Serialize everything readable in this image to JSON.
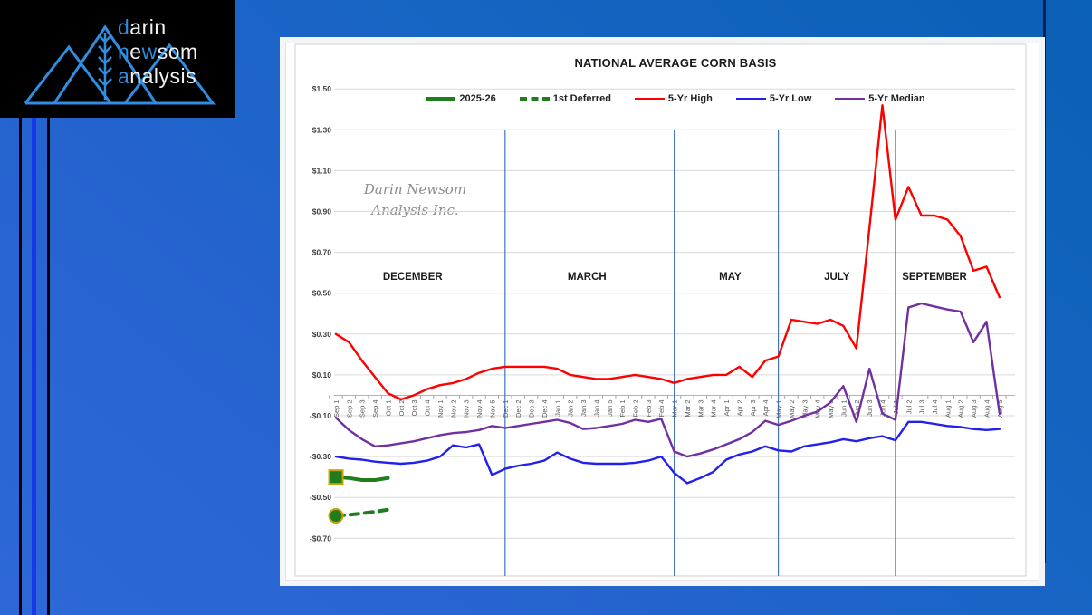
{
  "logo": {
    "d": "d",
    "arin": "arin",
    "n": "n",
    "e": "e",
    "w": "w",
    "som": "som",
    "a": "a",
    "nalysis": "nalysis",
    "accent_color": "#2f8de2"
  },
  "watermark": {
    "line1": "Darin Newsom",
    "line2": "Analysis Inc."
  },
  "chart_data": {
    "type": "line",
    "title": "NATIONAL AVERAGE CORN BASIS",
    "xlabel": "",
    "ylabel": "",
    "ylim": [
      -0.7,
      1.5
    ],
    "grid": true,
    "legend_position": "top",
    "y_ticks": [
      {
        "label": "$1.50",
        "v": 1.5
      },
      {
        "label": "$1.30",
        "v": 1.3
      },
      {
        "label": "$1.10",
        "v": 1.1
      },
      {
        "label": "$0.90",
        "v": 0.9
      },
      {
        "label": "$0.70",
        "v": 0.7
      },
      {
        "label": "$0.50",
        "v": 0.5
      },
      {
        "label": "$0.30",
        "v": 0.3
      },
      {
        "label": "$0.10",
        "v": 0.1
      },
      {
        "label": "-$0.10",
        "v": -0.1
      },
      {
        "label": "-$0.30",
        "v": -0.3
      },
      {
        "label": "-$0.50",
        "v": -0.5
      },
      {
        "label": "-$0.70",
        "v": -0.7
      }
    ],
    "categories": [
      "Sep 1",
      "Sep 2",
      "Sep 3",
      "Sep 4",
      "Oct 1",
      "Oct 2",
      "Oct 3",
      "Oct 4",
      "Nov 1",
      "Nov 2",
      "Nov 3",
      "Nov 4",
      "Nov 5",
      "Dec 1",
      "Dec 2",
      "Dec 3",
      "Dec 4",
      "Jan 1",
      "Jan 2",
      "Jan 3",
      "Jan 4",
      "Jan 5",
      "Feb 1",
      "Feb 2",
      "Feb 3",
      "Feb 4",
      "Mar 1",
      "Mar 2",
      "Mar 3",
      "Mar 4",
      "Apr 1",
      "Apr 2",
      "Apr 3",
      "Apr 4",
      "May 1",
      "May 2",
      "May 3",
      "May 4",
      "May 5",
      "Jun 1",
      "Jun 2",
      "Jun 3",
      "Jun 4",
      "Jul 1",
      "Jul 2",
      "Jul 3",
      "Jul 4",
      "Aug 1",
      "Aug 2",
      "Aug 3",
      "Aug 4",
      "Aug 5"
    ],
    "month_separators": {
      "color": "#4472c4",
      "at_category_indices": [
        13,
        26,
        34,
        43
      ]
    },
    "month_labels": [
      {
        "text": "DECEMBER",
        "center_index": 5.9
      },
      {
        "text": "MARCH",
        "center_index": 19.3
      },
      {
        "text": "MAY",
        "center_index": 30.3
      },
      {
        "text": "JULY",
        "center_index": 38.5
      },
      {
        "text": "SEPTEMBER",
        "center_index": 46
      }
    ],
    "series": [
      {
        "name": "2025-26",
        "color": "#1f7d1f",
        "dashed": false,
        "width": 4,
        "marker": "square",
        "marker_outline": "#cfa100",
        "values": [
          -0.4,
          -0.405,
          -0.415,
          -0.415,
          -0.405
        ]
      },
      {
        "name": "1st Deferred",
        "color": "#1f7d1f",
        "dashed": true,
        "width": 4,
        "marker": "circle",
        "marker_outline": "#cfa100",
        "values": [
          -0.59,
          -0.585,
          -0.578,
          -0.57,
          -0.56
        ]
      },
      {
        "name": "5-Yr High",
        "color": "#fe0000",
        "dashed": false,
        "width": 2.4,
        "marker": "none",
        "values": [
          0.3,
          0.26,
          0.17,
          0.09,
          0.01,
          -0.02,
          0.0,
          0.03,
          0.05,
          0.06,
          0.08,
          0.11,
          0.13,
          0.14,
          0.14,
          0.14,
          0.14,
          0.13,
          0.1,
          0.09,
          0.08,
          0.08,
          0.09,
          0.1,
          0.09,
          0.08,
          0.06,
          0.08,
          0.09,
          0.1,
          0.1,
          0.14,
          0.09,
          0.17,
          0.19,
          0.37,
          0.36,
          0.35,
          0.37,
          0.34,
          0.23,
          0.82,
          1.42,
          0.86,
          1.02,
          0.88,
          0.88,
          0.86,
          0.78,
          0.61,
          0.63,
          0.48
        ]
      },
      {
        "name": "5-Yr Low",
        "color": "#2121eb",
        "dashed": false,
        "width": 2.4,
        "marker": "none",
        "values": [
          -0.3,
          -0.31,
          -0.315,
          -0.325,
          -0.33,
          -0.335,
          -0.33,
          -0.32,
          -0.3,
          -0.245,
          -0.255,
          -0.24,
          -0.39,
          -0.36,
          -0.345,
          -0.335,
          -0.32,
          -0.28,
          -0.31,
          -0.33,
          -0.335,
          -0.335,
          -0.335,
          -0.33,
          -0.32,
          -0.3,
          -0.38,
          -0.43,
          -0.405,
          -0.375,
          -0.315,
          -0.29,
          -0.275,
          -0.25,
          -0.27,
          -0.275,
          -0.25,
          -0.24,
          -0.23,
          -0.215,
          -0.225,
          -0.21,
          -0.2,
          -0.22,
          -0.13,
          -0.13,
          -0.14,
          -0.15,
          -0.155,
          -0.165,
          -0.17,
          -0.165
        ]
      },
      {
        "name": "5-Yr Median",
        "color": "#7030a0",
        "dashed": false,
        "width": 2.4,
        "marker": "none",
        "values": [
          -0.11,
          -0.17,
          -0.215,
          -0.25,
          -0.245,
          -0.235,
          -0.225,
          -0.21,
          -0.195,
          -0.185,
          -0.18,
          -0.17,
          -0.15,
          -0.16,
          -0.15,
          -0.14,
          -0.13,
          -0.12,
          -0.135,
          -0.165,
          -0.16,
          -0.15,
          -0.14,
          -0.12,
          -0.13,
          -0.115,
          -0.275,
          -0.3,
          -0.285,
          -0.265,
          -0.24,
          -0.215,
          -0.18,
          -0.125,
          -0.145,
          -0.125,
          -0.1,
          -0.08,
          -0.035,
          0.045,
          -0.13,
          0.13,
          -0.09,
          -0.12,
          0.43,
          0.45,
          0.435,
          0.42,
          0.41,
          0.26,
          0.36,
          -0.09
        ]
      }
    ]
  }
}
